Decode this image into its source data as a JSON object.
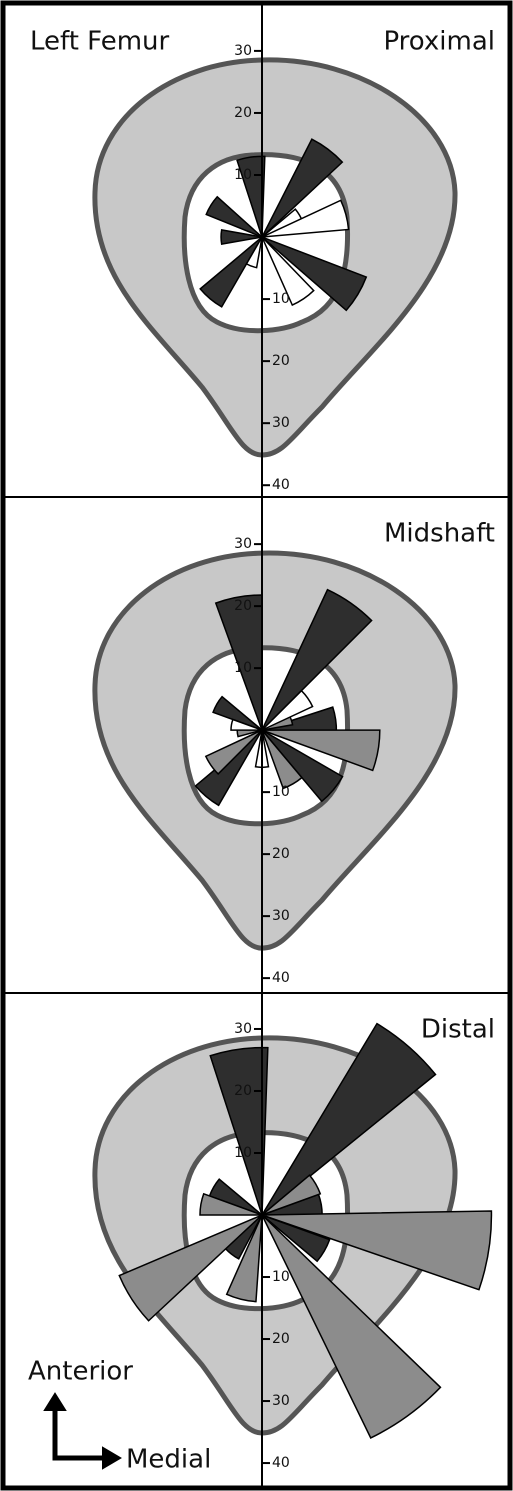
{
  "chart_data": [
    {
      "type": "rose",
      "title": "Proximal",
      "annotations": [
        "Left Femur"
      ],
      "ylim": [
        -41.9,
        37.4
      ],
      "yticks": [
        30,
        20,
        10,
        {
          "value": -10,
          "label": "10"
        },
        {
          "value": -20,
          "label": "20"
        },
        {
          "value": -30,
          "label": "30"
        },
        {
          "value": -40,
          "label": "40"
        }
      ],
      "series": [
        {
          "color": "#2e2e2e",
          "x": [
            -8,
            37,
            121,
            220,
            270,
            302
          ],
          "values": [
            13,
            17.7,
            18,
            13,
            6.6,
            9.7
          ]
        },
        {
          "color": "#ffffff",
          "x": [
            60,
            75,
            146,
            200
          ],
          "values": [
            7,
            14,
            12,
            5
          ]
        }
      ]
    },
    {
      "type": "rose",
      "title": "Midshaft",
      "ylim": [
        -42.4,
        37.6
      ],
      "yticks": [
        30,
        20,
        10,
        {
          "value": -10,
          "label": "10"
        },
        {
          "value": -20,
          "label": "20"
        },
        {
          "value": -30,
          "label": "30"
        },
        {
          "value": -40,
          "label": "40"
        }
      ],
      "series": [
        {
          "color": "#2e2e2e",
          "x": [
            -10,
            35,
            82,
            130,
            220,
            300
          ],
          "values": [
            21.8,
            25,
            12,
            15,
            14,
            8.4
          ]
        },
        {
          "color": "#8c8c8c",
          "x": [
            70,
            100,
            150,
            235,
            265
          ],
          "values": [
            5,
            19,
            10,
            10,
            4
          ]
        },
        {
          "color": "#ffffff",
          "x": [
            55,
            180,
            280
          ],
          "values": [
            9,
            6,
            5
          ]
        }
      ]
    },
    {
      "type": "rose",
      "title": "Distal",
      "annotations": [
        "Anterior",
        "Medial"
      ],
      "ylim": [
        -43.7,
        35.8
      ],
      "yticks": [
        30,
        20,
        10,
        {
          "value": -10,
          "label": "10"
        },
        {
          "value": -20,
          "label": "20"
        },
        {
          "value": -30,
          "label": "30"
        },
        {
          "value": -40,
          "label": "40"
        }
      ],
      "series": [
        {
          "color": "#2e2e2e",
          "x": [
            -8,
            41,
            80,
            120,
            218,
            300
          ],
          "values": [
            27,
            36,
            9.7,
            11.6,
            8,
            9
          ]
        },
        {
          "color": "#8c8c8c",
          "x": [
            60,
            99,
            144,
            194,
            237,
            280
          ],
          "values": [
            10,
            37,
            40,
            14,
            25,
            10
          ]
        }
      ]
    }
  ]
}
